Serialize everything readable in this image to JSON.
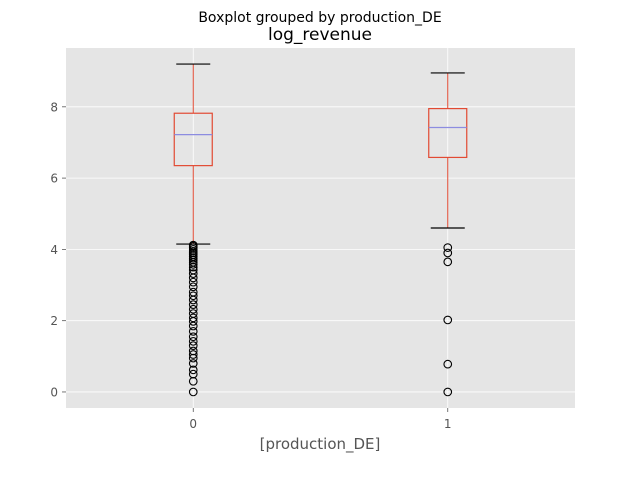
{
  "chart_data": {
    "type": "boxplot",
    "suptitle": "Boxplot grouped by production_DE",
    "title": "log_revenue",
    "xlabel": "[production_DE]",
    "ylabel": "",
    "ylim": [
      -0.45,
      9.65
    ],
    "yticks": [
      0,
      2,
      4,
      6,
      8
    ],
    "grid": true,
    "colors": {
      "background": "#e5e5e5",
      "grid": "#ffffff",
      "box": "#e24a33",
      "median": "#8c8ce0",
      "whisker": "#e24a33",
      "cap": "#000000",
      "flier": "#000000",
      "tick_label": "#555555"
    },
    "categories": [
      "0",
      "1"
    ],
    "boxes": [
      {
        "category": "0",
        "whisker_low": 4.15,
        "q1": 6.35,
        "median": 7.22,
        "q3": 7.82,
        "whisker_high": 9.2,
        "outliers": [
          4.12,
          4.09,
          4.05,
          4.0,
          3.95,
          3.9,
          3.85,
          3.8,
          3.75,
          3.7,
          3.64,
          3.58,
          3.5,
          3.42,
          3.32,
          3.2,
          3.08,
          2.95,
          2.8,
          2.7,
          2.58,
          2.45,
          2.32,
          2.2,
          2.08,
          1.98,
          1.85,
          1.7,
          1.55,
          1.42,
          1.3,
          1.15,
          1.05,
          0.95,
          0.8,
          0.62,
          0.5,
          0.3,
          0.0
        ]
      },
      {
        "category": "1",
        "whisker_low": 4.6,
        "q1": 6.58,
        "median": 7.42,
        "q3": 7.95,
        "whisker_high": 8.95,
        "outliers": [
          4.05,
          3.9,
          3.65,
          2.02,
          0.78,
          0.0
        ]
      }
    ]
  }
}
